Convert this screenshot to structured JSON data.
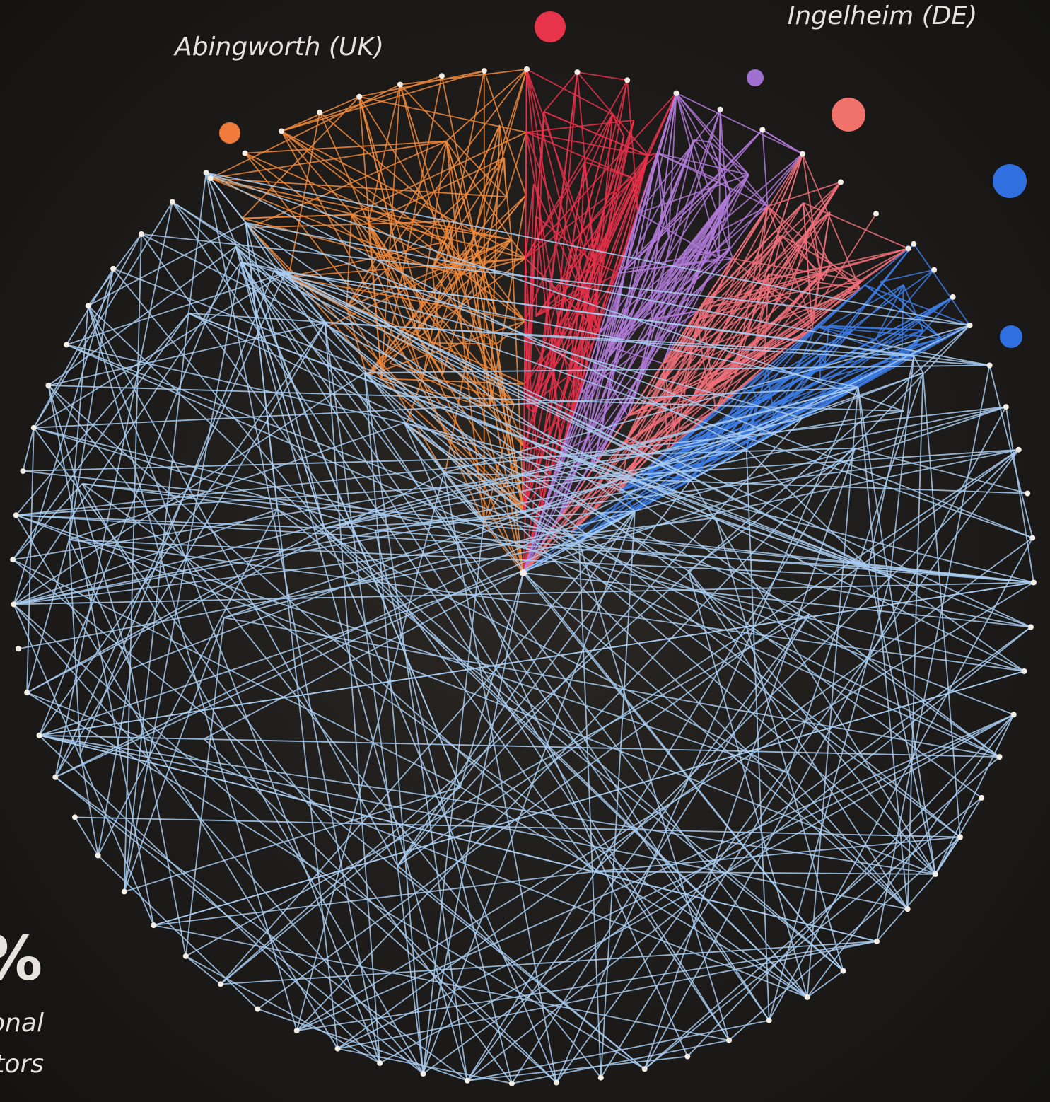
{
  "labels": {
    "abingworth": "Abingworth (UK)",
    "ingelheim": "Ingelheim (DE)"
  },
  "left_edge": {
    "percent": "%",
    "line1": "onal",
    "line2": "tors"
  }
}
